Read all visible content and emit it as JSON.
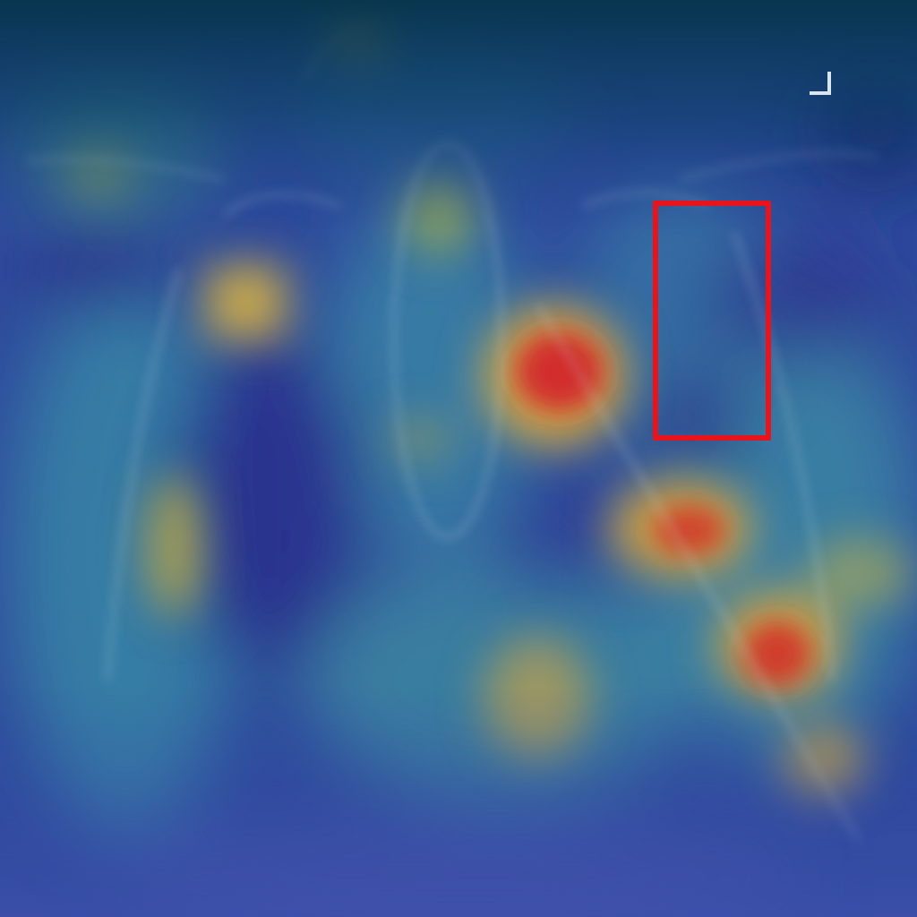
{
  "image": {
    "kind": "chest-xray-heatmap-overlay",
    "heatmap_colormap": "jet",
    "base_color": "#2a3f95",
    "hot_color": "#d2262a",
    "warm_color": "#e0b43a",
    "teal_color": "#3aa6a0"
  },
  "annotation": {
    "box_color": "#e8141c"
  },
  "icons": {
    "corner_marker": "corner-bracket-icon"
  }
}
